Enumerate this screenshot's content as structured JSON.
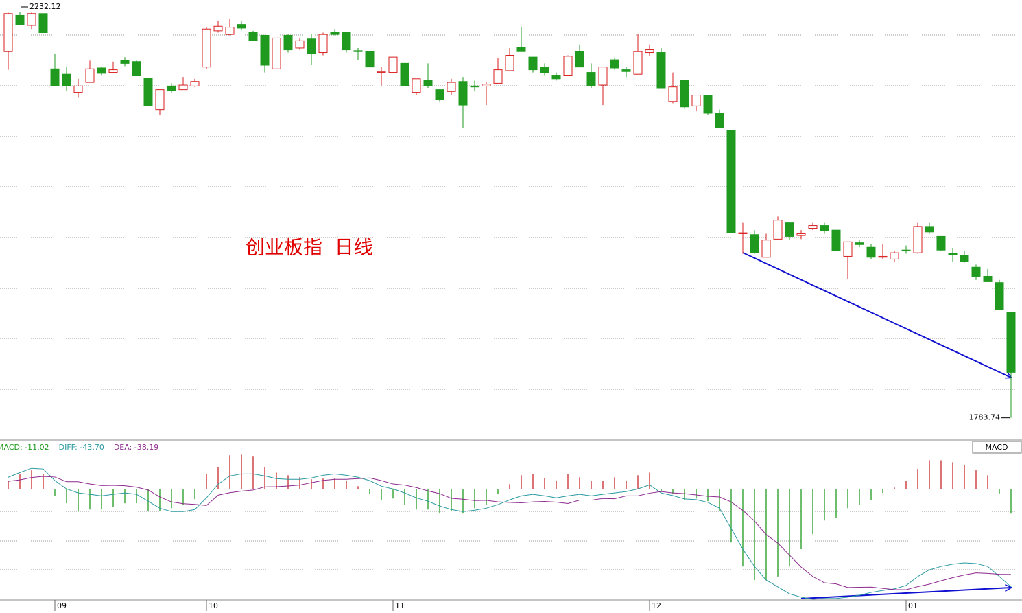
{
  "chart_data": [
    {
      "type": "candlestick",
      "title": "创业板指  日线",
      "categories": [
        null,
        null,
        null,
        null,
        "09",
        null,
        null,
        null,
        null,
        null,
        null,
        null,
        null,
        null,
        null,
        null,
        null,
        "10",
        null,
        null,
        null,
        null,
        null,
        null,
        null,
        null,
        null,
        null,
        null,
        null,
        null,
        null,
        null,
        "11",
        null,
        null,
        null,
        null,
        null,
        null,
        null,
        null,
        null,
        null,
        null,
        null,
        null,
        null,
        null,
        null,
        null,
        null,
        null,
        null,
        null,
        "12",
        null,
        null,
        null,
        null,
        null,
        null,
        null,
        null,
        null,
        null,
        null,
        null,
        null,
        null,
        null,
        null,
        null,
        null,
        null,
        null,
        null,
        "01",
        null,
        null,
        null,
        null,
        null,
        null,
        null,
        null,
        null
      ],
      "open": [
        2188,
        2228,
        2217,
        2230,
        2169,
        2163,
        2143,
        2154,
        2170,
        2165,
        2178,
        2177,
        2159,
        2124,
        2150,
        2146,
        2150,
        2171,
        2211,
        2207,
        2218,
        2209,
        2206,
        2169,
        2206,
        2192,
        2202,
        2187,
        2209,
        2209,
        2189,
        2188,
        2165,
        2165,
        2175,
        2143,
        2156,
        2146,
        2144,
        2155,
        2150,
        2150,
        2153,
        2167,
        2193,
        2182,
        2171,
        2162,
        2162,
        2188,
        2165,
        2151,
        2179,
        2168,
        2163,
        2187,
        2187,
        2133,
        2156,
        2128,
        2140,
        2120,
        2101,
        1987,
        1986,
        1961,
        1981,
        1999,
        1985,
        1993,
        1996,
        1991,
        1962,
        1977,
        1972,
        1961,
        1959,
        1969,
        1966,
        1995,
        1984,
        1965,
        1963,
        1950,
        1940,
        1933,
        1900
      ],
      "high": [
        2231,
        2232.12,
        2231,
        2230,
        2186,
        2171,
        2158,
        2178,
        2171,
        2177,
        2182,
        2178,
        2159,
        2146,
        2153,
        2160,
        2158,
        2215,
        2222,
        2224,
        2222,
        2211,
        2206,
        2203,
        2207,
        2203,
        2207,
        2209,
        2213,
        2209,
        2192,
        2188,
        2171,
        2182,
        2175,
        2158,
        2175,
        2147,
        2158,
        2160,
        2156,
        2154,
        2181,
        2192,
        2215,
        2182,
        2175,
        2165,
        2184,
        2196,
        2175,
        2171,
        2181,
        2171,
        2207,
        2196,
        2192,
        2165,
        2156,
        2140,
        2140,
        2124,
        2101,
        1999,
        1991,
        1987,
        2006,
        1999,
        1991,
        1999,
        1999,
        1991,
        1978,
        1980,
        1976,
        1976,
        1968,
        1974,
        1999,
        1999,
        1984,
        1971,
        1968,
        1953,
        1948,
        1936,
        1900
      ],
      "low": [
        2168,
        2218,
        2213,
        2209,
        2150,
        2145,
        2137,
        2154,
        2162,
        2164,
        2172,
        2162,
        2128,
        2118,
        2143,
        2146,
        2149,
        2169,
        2209,
        2206,
        2212,
        2200,
        2165,
        2169,
        2187,
        2190,
        2173,
        2184,
        2206,
        2187,
        2179,
        2171,
        2150,
        2165,
        2150,
        2140,
        2148,
        2133,
        2140,
        2104,
        2144,
        2129,
        2153,
        2167,
        2188,
        2165,
        2162,
        2156,
        2162,
        2171,
        2148,
        2129,
        2168,
        2160,
        2163,
        2183,
        2148,
        2131,
        2125,
        2122,
        2118,
        2104,
        1988,
        1965,
        1965,
        1961,
        1981,
        1980,
        1981,
        1991,
        1987,
        1968,
        1937,
        1972,
        1959,
        1959,
        1956,
        1965,
        1965,
        1987,
        1968,
        1956,
        1955,
        1936,
        1934,
        1903,
        1783.74
      ],
      "close": [
        2230,
        2218,
        2230,
        2209,
        2150,
        2150,
        2150,
        2169,
        2164,
        2168,
        2175,
        2162,
        2128,
        2146,
        2145,
        2151,
        2155,
        2213,
        2216,
        2215,
        2214,
        2200,
        2173,
        2203,
        2190,
        2200,
        2186,
        2207,
        2207,
        2190,
        2188,
        2171,
        2166,
        2182,
        2150,
        2158,
        2150,
        2135,
        2154,
        2129,
        2149,
        2152,
        2168,
        2184,
        2188,
        2168,
        2165,
        2158,
        2183,
        2171,
        2150,
        2171,
        2170,
        2166,
        2188,
        2190,
        2148,
        2149,
        2127,
        2140,
        2120,
        2104,
        1988,
        1988,
        1966,
        1980,
        2002,
        1984,
        1987,
        1996,
        1990,
        1968,
        1978,
        1975,
        1961,
        1962,
        1966,
        1968,
        1995,
        1989,
        1969,
        1964,
        1956,
        1940,
        1934,
        1903,
        1834
      ],
      "up_color": "#d81e1e",
      "down_color": "#1f9a1f",
      "ylim": [
        1760,
        2245
      ]
    },
    {
      "type": "macd",
      "indicator": "MACD",
      "ylim": [
        -52,
        16
      ],
      "series": [
        {
          "legend": "MACD: -11.02",
          "up_color": "#c8282d",
          "down_color": "#1f9a1f",
          "values": [
            3.7,
            6.7,
            8.3,
            6.7,
            -3.1,
            -6.4,
            -10,
            -9.2,
            -9.2,
            -8,
            -6.4,
            -6.4,
            -10,
            -10,
            -8.6,
            -7,
            -4.6,
            6.7,
            9.8,
            15,
            15.3,
            14.4,
            9.8,
            7.3,
            6.1,
            5.2,
            4.3,
            4.6,
            4.9,
            3.7,
            1.2,
            -2.4,
            -4.9,
            -4.3,
            -7,
            -9.2,
            -9.2,
            -11,
            -10,
            -11,
            -8.6,
            -7,
            -2.4,
            2.1,
            6.1,
            6.7,
            4.9,
            3.7,
            6.7,
            5.2,
            3.7,
            3.7,
            5.2,
            3.7,
            6.1,
            7.3,
            -1.2,
            -2.4,
            -4.9,
            -4.3,
            -5.5,
            -10,
            -23.9,
            -34.6,
            -40.7,
            -40.7,
            -39.1,
            -34.6,
            -26.9,
            -20.2,
            -14.1,
            -13.1,
            -8.6,
            -7,
            -4.9,
            -1.8,
            0.6,
            3.7,
            8.9,
            12.8,
            12.8,
            11.9,
            10.7,
            8.3,
            6.1,
            -2,
            -11.02
          ]
        },
        {
          "legend": "DIFF: -43.70",
          "color": "#2a9aa0",
          "values": [
            5.2,
            7.3,
            9.2,
            8.9,
            3.7,
            0,
            -1.8,
            -2.4,
            -3.1,
            -2.4,
            -1.8,
            -2.4,
            -5.5,
            -8.6,
            -10.1,
            -10.1,
            -9.2,
            -4,
            2.1,
            5.8,
            6.7,
            6.7,
            5.8,
            4.6,
            4.3,
            4.3,
            4.9,
            6.1,
            6.7,
            6.1,
            5.2,
            3.7,
            1.2,
            0,
            -1.8,
            -4,
            -5.5,
            -7.6,
            -9.2,
            -10.1,
            -9.5,
            -8.6,
            -7,
            -4.9,
            -3.1,
            -2.4,
            -3.1,
            -4,
            -3.1,
            -2.4,
            -3.1,
            -2.4,
            -1.8,
            -1.2,
            0,
            1.8,
            -1.8,
            -3,
            -4.5,
            -4.8,
            -6,
            -8.6,
            -17.7,
            -26.9,
            -34.6,
            -40.7,
            -43.7,
            -46.8,
            -48.3,
            -49.2,
            -48.9,
            -48.9,
            -48.3,
            -47.4,
            -46.2,
            -45.3,
            -44.6,
            -43.1,
            -39.1,
            -36.1,
            -34.6,
            -33.6,
            -33,
            -33.3,
            -34.6,
            -39.1,
            -43.7
          ]
        },
        {
          "legend": "DEA: -38.19",
          "color": "#8e2a8e",
          "values": [
            3.4,
            4,
            5.1,
            5.6,
            5.3,
            3.2,
            3.2,
            2.2,
            1.5,
            1.6,
            1.4,
            0.8,
            -0.5,
            -3.6,
            -5.8,
            -6.6,
            -6.9,
            -7.4,
            -2.8,
            -1.7,
            -1,
            -0.5,
            0.9,
            1,
            1.3,
            1.7,
            2.8,
            3.8,
            4.3,
            4.3,
            4.6,
            4.9,
            3.7,
            2.2,
            1.7,
            0.6,
            -0.9,
            -2.1,
            -4.2,
            -4.6,
            -5.2,
            -5.1,
            -5.8,
            -6,
            -6.2,
            -5.8,
            -5.6,
            -5.9,
            -6.5,
            -5,
            -5,
            -4.3,
            -4.4,
            -3.1,
            -3.1,
            -1.9,
            -1.2,
            -1.8,
            -2.1,
            -2.7,
            -3.3,
            -3.6,
            -5.8,
            -9.6,
            -14.3,
            -20.4,
            -24.2,
            -29.5,
            -34.9,
            -39.1,
            -41.9,
            -42.4,
            -44,
            -43.9,
            -43.8,
            -44.4,
            -44.9,
            -45,
            -43.6,
            -42.5,
            -41,
            -39.6,
            -38.4,
            -37.5,
            -37.7,
            -38.1,
            -38.19
          ]
        }
      ]
    }
  ]
}
